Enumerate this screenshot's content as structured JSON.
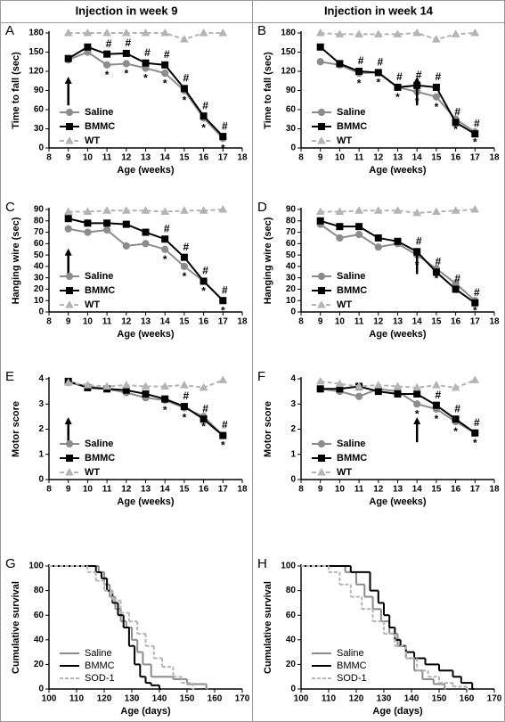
{
  "headers": [
    "Injection in week 9",
    "Injection in week 14"
  ],
  "chart_data": [
    {
      "type": "line",
      "panel": "A",
      "xlabel": "Age (weeks)",
      "ylabel": "Time to fall (sec)",
      "xlim": [
        8,
        18
      ],
      "xticks": [
        8,
        9,
        10,
        11,
        12,
        13,
        14,
        15,
        16,
        17,
        18
      ],
      "ylim": [
        0,
        180
      ],
      "yticks": [
        0,
        30,
        60,
        90,
        120,
        150,
        180
      ],
      "arrow_x": 9,
      "legend": "lower left",
      "x": [
        9,
        10,
        11,
        12,
        13,
        14,
        15,
        16,
        17
      ],
      "series": [
        {
          "name": "Saline",
          "color": "#8c8c8c",
          "marker": "circle",
          "dashed": false,
          "values": [
            138,
            150,
            130,
            132,
            125,
            117,
            90,
            47,
            15
          ],
          "marks": [
            null,
            null,
            "*",
            "*",
            "*",
            "*",
            "*",
            "*",
            "*"
          ]
        },
        {
          "name": "BMMC",
          "color": "#000000",
          "marker": "square",
          "dashed": false,
          "values": [
            140,
            158,
            147,
            148,
            133,
            130,
            93,
            50,
            18
          ],
          "marks": [
            null,
            null,
            "#",
            "#",
            "#",
            "#",
            "#",
            "#",
            "#"
          ]
        },
        {
          "name": "WT",
          "color": "#b4b4b4",
          "marker": "triangle",
          "dashed": true,
          "values": [
            180,
            180,
            180,
            180,
            180,
            180,
            170,
            180,
            180
          ]
        }
      ]
    },
    {
      "type": "line",
      "panel": "B",
      "xlabel": "Age (weeks)",
      "ylabel": "Time to fall (sec)",
      "xlim": [
        8,
        18
      ],
      "xticks": [
        8,
        9,
        10,
        11,
        12,
        13,
        14,
        15,
        16,
        17,
        18
      ],
      "ylim": [
        0,
        180
      ],
      "yticks": [
        0,
        30,
        60,
        90,
        120,
        150,
        180
      ],
      "arrow_x": 14,
      "legend": "lower left",
      "x": [
        9,
        10,
        11,
        12,
        13,
        14,
        15,
        16,
        17
      ],
      "series": [
        {
          "name": "Saline",
          "color": "#8c8c8c",
          "marker": "circle",
          "dashed": false,
          "values": [
            135,
            130,
            117,
            118,
            95,
            88,
            80,
            45,
            25
          ],
          "marks": [
            null,
            null,
            "*",
            "*",
            "*",
            "*",
            "*",
            "*",
            "*"
          ]
        },
        {
          "name": "BMMC",
          "color": "#000000",
          "marker": "square",
          "dashed": false,
          "values": [
            158,
            132,
            120,
            118,
            95,
            98,
            95,
            40,
            22
          ],
          "marks": [
            null,
            null,
            "#",
            "#",
            "#",
            "#",
            "#",
            "#",
            "#"
          ]
        },
        {
          "name": "WT",
          "color": "#b4b4b4",
          "marker": "triangle",
          "dashed": true,
          "values": [
            180,
            178,
            178,
            178,
            178,
            180,
            170,
            178,
            180
          ]
        }
      ]
    },
    {
      "type": "line",
      "panel": "C",
      "xlabel": "Age (weeks)",
      "ylabel": "Hanging wire (sec)",
      "xlim": [
        8,
        18
      ],
      "xticks": [
        8,
        9,
        10,
        11,
        12,
        13,
        14,
        15,
        16,
        17,
        18
      ],
      "ylim": [
        0,
        90
      ],
      "yticks": [
        0,
        10,
        20,
        30,
        40,
        50,
        60,
        70,
        80,
        90
      ],
      "arrow_x": 9,
      "legend": "lower left",
      "x": [
        9,
        10,
        11,
        12,
        13,
        14,
        15,
        16,
        17
      ],
      "series": [
        {
          "name": "Saline",
          "color": "#8c8c8c",
          "marker": "circle",
          "dashed": false,
          "values": [
            73,
            70,
            72,
            58,
            60,
            55,
            40,
            27,
            10
          ],
          "marks": [
            null,
            null,
            null,
            null,
            null,
            "*",
            "*",
            "*",
            "*"
          ]
        },
        {
          "name": "BMMC",
          "color": "#000000",
          "marker": "square",
          "dashed": false,
          "values": [
            82,
            78,
            78,
            77,
            70,
            64,
            48,
            27,
            10
          ],
          "marks": [
            null,
            null,
            null,
            null,
            null,
            "#",
            "#",
            "#",
            "#"
          ]
        },
        {
          "name": "WT",
          "color": "#b4b4b4",
          "marker": "triangle",
          "dashed": true,
          "values": [
            88,
            88,
            89,
            89,
            89,
            88,
            89,
            89,
            90
          ]
        }
      ]
    },
    {
      "type": "line",
      "panel": "D",
      "xlabel": "Age (weeks)",
      "ylabel": "Hanging wire (sec)",
      "xlim": [
        8,
        18
      ],
      "xticks": [
        8,
        9,
        10,
        11,
        12,
        13,
        14,
        15,
        16,
        17,
        18
      ],
      "ylim": [
        0,
        90
      ],
      "yticks": [
        0,
        10,
        20,
        30,
        40,
        50,
        60,
        70,
        80,
        90
      ],
      "arrow_x": 14,
      "legend": "lower left",
      "x": [
        9,
        10,
        11,
        12,
        13,
        14,
        15,
        16,
        17
      ],
      "series": [
        {
          "name": "Saline",
          "color": "#8c8c8c",
          "marker": "circle",
          "dashed": false,
          "values": [
            77,
            65,
            68,
            57,
            60,
            50,
            38,
            25,
            10
          ],
          "marks": [
            null,
            null,
            null,
            null,
            null,
            "*",
            "*",
            "*",
            "*"
          ]
        },
        {
          "name": "BMMC",
          "color": "#000000",
          "marker": "square",
          "dashed": false,
          "values": [
            80,
            75,
            75,
            65,
            62,
            53,
            35,
            20,
            8
          ],
          "marks": [
            null,
            null,
            null,
            null,
            null,
            "#",
            "#",
            "#",
            "#"
          ]
        },
        {
          "name": "WT",
          "color": "#b4b4b4",
          "marker": "triangle",
          "dashed": true,
          "values": [
            88,
            88,
            89,
            89,
            89,
            87,
            88,
            89,
            90
          ]
        }
      ]
    },
    {
      "type": "line",
      "panel": "E",
      "xlabel": "Age (weeks)",
      "ylabel": "Motor score",
      "xlim": [
        8,
        18
      ],
      "xticks": [
        8,
        9,
        10,
        11,
        12,
        13,
        14,
        15,
        16,
        17,
        18
      ],
      "ylim": [
        0,
        4
      ],
      "yticks": [
        0,
        1,
        2,
        3,
        4
      ],
      "arrow_x": 9,
      "legend": "lower left",
      "x": [
        9,
        10,
        11,
        12,
        13,
        14,
        15,
        16,
        17
      ],
      "series": [
        {
          "name": "Saline",
          "color": "#8c8c8c",
          "marker": "circle",
          "dashed": false,
          "values": [
            3.85,
            3.7,
            3.6,
            3.45,
            3.25,
            3.15,
            2.85,
            2.5,
            1.75
          ],
          "marks": [
            null,
            null,
            null,
            null,
            null,
            "*",
            "*",
            "*",
            "*"
          ]
        },
        {
          "name": "BMMC",
          "color": "#000000",
          "marker": "square",
          "dashed": false,
          "values": [
            3.9,
            3.65,
            3.6,
            3.55,
            3.4,
            3.2,
            2.9,
            2.4,
            1.75
          ],
          "marks": [
            null,
            null,
            null,
            null,
            null,
            null,
            "#",
            "#",
            "#"
          ]
        },
        {
          "name": "WT",
          "color": "#b4b4b4",
          "marker": "triangle",
          "dashed": true,
          "values": [
            3.85,
            3.75,
            3.7,
            3.75,
            3.7,
            3.7,
            3.75,
            3.65,
            3.95
          ]
        }
      ]
    },
    {
      "type": "line",
      "panel": "F",
      "xlabel": "Age (weeks)",
      "ylabel": "Motor score",
      "xlim": [
        8,
        18
      ],
      "xticks": [
        8,
        9,
        10,
        11,
        12,
        13,
        14,
        15,
        16,
        17,
        18
      ],
      "ylim": [
        0,
        4
      ],
      "yticks": [
        0,
        1,
        2,
        3,
        4
      ],
      "arrow_x": 14,
      "legend": "lower left",
      "x": [
        9,
        10,
        11,
        12,
        13,
        14,
        15,
        16,
        17
      ],
      "series": [
        {
          "name": "Saline",
          "color": "#8c8c8c",
          "marker": "circle",
          "dashed": false,
          "values": [
            3.6,
            3.5,
            3.3,
            3.6,
            3.5,
            3.0,
            2.8,
            2.3,
            1.85
          ],
          "marks": [
            null,
            null,
            null,
            null,
            null,
            "*",
            "*",
            "*",
            "*"
          ]
        },
        {
          "name": "BMMC",
          "color": "#000000",
          "marker": "square",
          "dashed": false,
          "values": [
            3.6,
            3.6,
            3.7,
            3.5,
            3.4,
            3.4,
            2.95,
            2.4,
            1.85
          ],
          "marks": [
            null,
            null,
            null,
            null,
            null,
            null,
            "#",
            "#",
            "#"
          ]
        },
        {
          "name": "WT",
          "color": "#b4b4b4",
          "marker": "triangle",
          "dashed": true,
          "values": [
            3.9,
            3.8,
            3.7,
            3.75,
            3.7,
            3.65,
            3.75,
            3.65,
            3.95
          ]
        }
      ]
    },
    {
      "type": "step",
      "panel": "G",
      "xlabel": "Age (days)",
      "ylabel": "Cumulative survival",
      "xlim": [
        100,
        170
      ],
      "xticks": [
        100,
        110,
        120,
        130,
        140,
        150,
        160,
        170
      ],
      "ylim": [
        0,
        100
      ],
      "yticks": [
        0,
        20,
        40,
        60,
        80,
        100
      ],
      "legend": "lower left",
      "series": [
        {
          "name": "Saline",
          "color": "#8c8c8c",
          "dashed": false,
          "x": [
            100,
            118,
            120,
            122,
            124,
            126,
            128,
            130,
            132,
            134,
            137,
            145,
            150,
            157
          ],
          "values": [
            100,
            95,
            85,
            75,
            65,
            55,
            50,
            40,
            30,
            20,
            10,
            8,
            4,
            0
          ]
        },
        {
          "name": "BMMC",
          "color": "#000000",
          "dashed": false,
          "x": [
            100,
            117,
            119,
            121,
            123,
            125,
            127,
            129,
            131,
            133,
            135,
            137,
            140
          ],
          "values": [
            100,
            95,
            90,
            80,
            70,
            60,
            50,
            35,
            20,
            10,
            5,
            3,
            0
          ]
        },
        {
          "name": "SOD-1",
          "color": "#b4b4b4",
          "dashed": true,
          "x": [
            100,
            114,
            117,
            120,
            123,
            126,
            129,
            132,
            135,
            138,
            141,
            145,
            148,
            152
          ],
          "values": [
            100,
            95,
            88,
            80,
            72,
            62,
            55,
            45,
            35,
            25,
            18,
            10,
            5,
            0
          ]
        }
      ]
    },
    {
      "type": "step",
      "panel": "H",
      "xlabel": "Age (days)",
      "ylabel": "Cumulative survival",
      "xlim": [
        100,
        170
      ],
      "xticks": [
        100,
        110,
        120,
        130,
        140,
        150,
        160,
        170
      ],
      "ylim": [
        0,
        100
      ],
      "yticks": [
        0,
        20,
        40,
        60,
        80,
        100
      ],
      "legend": "lower left",
      "series": [
        {
          "name": "Saline",
          "color": "#8c8c8c",
          "dashed": false,
          "x": [
            100,
            116,
            120,
            123,
            126,
            129,
            132,
            135,
            138,
            141,
            144,
            148,
            152
          ],
          "values": [
            100,
            95,
            85,
            75,
            65,
            55,
            45,
            35,
            25,
            15,
            8,
            4,
            0
          ]
        },
        {
          "name": "BMMC",
          "color": "#000000",
          "dashed": false,
          "x": [
            100,
            118,
            125,
            128,
            130,
            132,
            134,
            136,
            138,
            141,
            145,
            150,
            155,
            158,
            162
          ],
          "values": [
            100,
            95,
            80,
            70,
            60,
            50,
            40,
            35,
            30,
            25,
            20,
            15,
            10,
            5,
            0
          ]
        },
        {
          "name": "SOD-1",
          "color": "#b4b4b4",
          "dashed": true,
          "x": [
            100,
            110,
            114,
            118,
            122,
            126,
            130,
            134,
            138,
            142,
            146,
            150,
            155,
            160
          ],
          "values": [
            100,
            95,
            85,
            75,
            65,
            55,
            45,
            35,
            25,
            15,
            10,
            5,
            2,
            0
          ]
        }
      ]
    }
  ]
}
